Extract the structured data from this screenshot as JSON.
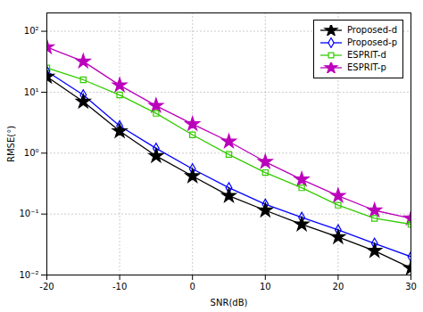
{
  "chart_data": {
    "type": "line",
    "xlabel": "SNR(dB)",
    "ylabel": "RMSE(°)",
    "x": [
      -20,
      -15,
      -10,
      -5,
      0,
      5,
      10,
      15,
      20,
      25,
      30
    ],
    "series": [
      {
        "name": "Proposed-d",
        "color": "#000000",
        "marker": "star",
        "values": [
          18.0,
          7.0,
          2.3,
          0.9,
          0.42,
          0.2,
          0.115,
          0.068,
          0.042,
          0.025,
          0.013
        ]
      },
      {
        "name": "Proposed-p",
        "color": "#0000FF",
        "marker": "diamond",
        "values": [
          22.0,
          9.0,
          2.8,
          1.2,
          0.55,
          0.27,
          0.145,
          0.088,
          0.055,
          0.033,
          0.02
        ]
      },
      {
        "name": "ESPRIT-d",
        "color": "#33CC00",
        "marker": "square",
        "values": [
          25.0,
          16.0,
          9.0,
          4.5,
          2.0,
          0.95,
          0.48,
          0.27,
          0.14,
          0.085,
          0.068
        ]
      },
      {
        "name": "ESPRIT-p",
        "color": "#BB00BB",
        "marker": "star",
        "values": [
          55.0,
          32.0,
          13.0,
          6.0,
          3.0,
          1.55,
          0.72,
          0.37,
          0.2,
          0.115,
          0.085
        ]
      }
    ],
    "log": "y",
    "xlim": [
      -20,
      30
    ],
    "xticks": [
      -20,
      -10,
      0,
      10,
      20,
      30
    ],
    "ylim": [
      0.01,
      200
    ],
    "yticks": [
      {
        "value": 0.01,
        "label": "10⁻²"
      },
      {
        "value": 0.1,
        "label": "10⁻¹"
      },
      {
        "value": 1,
        "label": "10⁰"
      },
      {
        "value": 10,
        "label": "10¹"
      },
      {
        "value": 100,
        "label": "10²"
      }
    ],
    "grid": true,
    "legend": "upper right"
  }
}
